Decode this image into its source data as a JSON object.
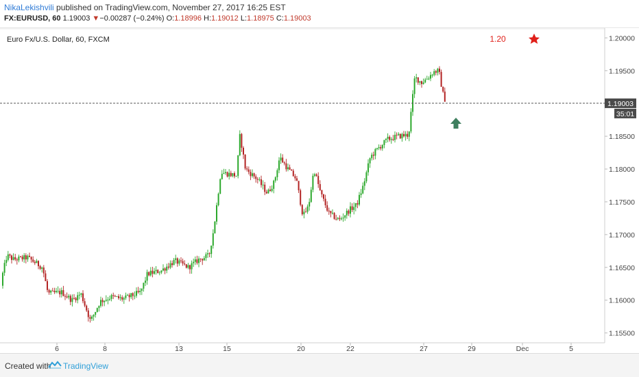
{
  "header": {
    "author": "NikaLekishvili",
    "published_text": " published on TradingView.com, November 27, 2017 16:25 EST",
    "symbol": "FX:EURUSD, 60",
    "last": "1.19003",
    "change": "−0.00287 (−0.24%)",
    "open_label": "O:",
    "open": "1.18996",
    "high_label": "H:",
    "high": "1.19012",
    "low_label": "L:",
    "low": "1.18975",
    "close_label": "C:",
    "close": "1.19003"
  },
  "colors": {
    "up": "#2ca82c",
    "down": "#b22222",
    "price_tag": "#4a4a4a",
    "arrow": "#3f7f5f",
    "star": "#e0201a"
  },
  "chart_data": {
    "type": "candlestick",
    "title": "Euro Fx/U.S. Dollar, 60, FXCM",
    "x_ticks": [
      "6",
      "8",
      "13",
      "15",
      "20",
      "22",
      "27",
      "29",
      "Dec",
      "5"
    ],
    "y_ticks": [
      "1.20000",
      "1.19500",
      "1.19000",
      "1.18500",
      "1.18000",
      "1.17500",
      "1.17000",
      "1.16500",
      "1.16000",
      "1.15500"
    ],
    "ylim": [
      1.1535,
      1.2015
    ],
    "current_price": "1.19003",
    "current_price_value": 1.19003,
    "countdown": "35:01",
    "annotation_text": "1.20",
    "annotation_icons": [
      "star-icon",
      "up-arrow-icon"
    ],
    "series_path": [
      [
        0,
        1.1622
      ],
      [
        10,
        1.1668
      ],
      [
        20,
        1.1662
      ],
      [
        40,
        1.1665
      ],
      [
        62,
        1.165
      ],
      [
        70,
        1.161
      ],
      [
        90,
        1.1612
      ],
      [
        105,
        1.16
      ],
      [
        118,
        1.161
      ],
      [
        132,
        1.1568
      ],
      [
        146,
        1.1598
      ],
      [
        162,
        1.1605
      ],
      [
        180,
        1.1602
      ],
      [
        205,
        1.1612
      ],
      [
        215,
        1.164
      ],
      [
        235,
        1.1645
      ],
      [
        255,
        1.166
      ],
      [
        275,
        1.165
      ],
      [
        290,
        1.1662
      ],
      [
        305,
        1.1668
      ],
      [
        312,
        1.171
      ],
      [
        322,
        1.1795
      ],
      [
        345,
        1.179
      ],
      [
        350,
        1.1852
      ],
      [
        358,
        1.18
      ],
      [
        375,
        1.1785
      ],
      [
        390,
        1.1763
      ],
      [
        400,
        1.178
      ],
      [
        408,
        1.1818
      ],
      [
        420,
        1.18
      ],
      [
        432,
        1.1785
      ],
      [
        442,
        1.1728
      ],
      [
        450,
        1.1743
      ],
      [
        458,
        1.18
      ],
      [
        468,
        1.1762
      ],
      [
        480,
        1.1732
      ],
      [
        495,
        1.1722
      ],
      [
        510,
        1.1738
      ],
      [
        520,
        1.1745
      ],
      [
        530,
        1.1775
      ],
      [
        540,
        1.1818
      ],
      [
        552,
        1.1832
      ],
      [
        565,
        1.1845
      ],
      [
        580,
        1.185
      ],
      [
        596,
        1.1852
      ],
      [
        605,
        1.194
      ],
      [
        615,
        1.1932
      ],
      [
        625,
        1.194
      ],
      [
        632,
        1.1948
      ],
      [
        640,
        1.195
      ],
      [
        646,
        1.1915
      ],
      [
        651,
        1.19
      ]
    ]
  },
  "footer": {
    "created_with": "Created with",
    "brand": "TradingView"
  }
}
